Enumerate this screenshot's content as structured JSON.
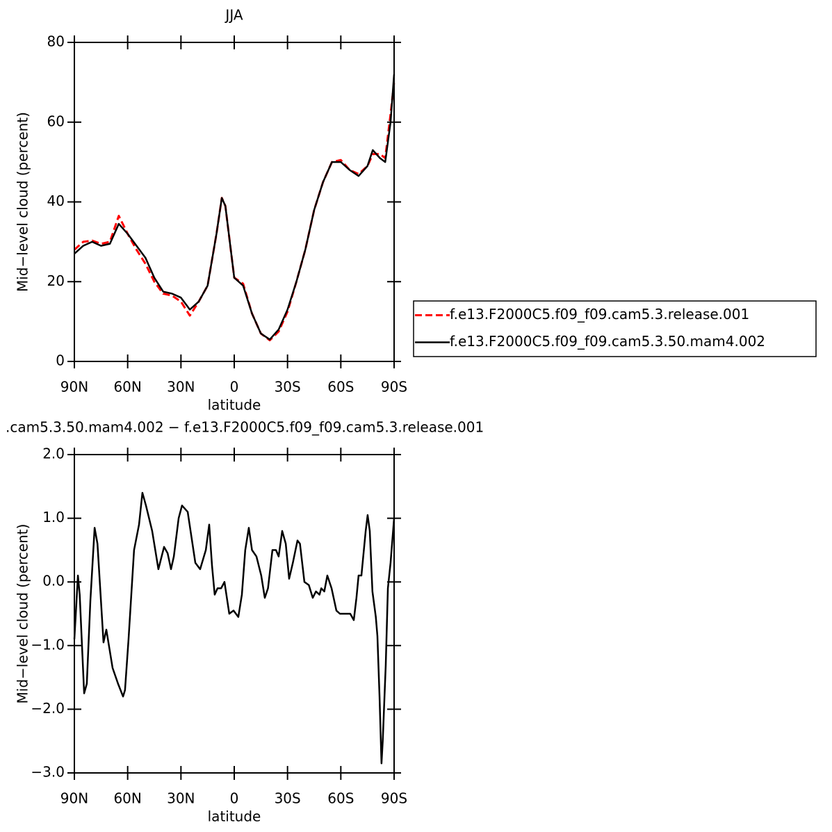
{
  "chart_data": [
    {
      "type": "line",
      "title": "JJA",
      "xlabel": "latitude",
      "ylabel": "Mid−level cloud (percent)",
      "x": [
        90,
        85,
        80,
        75,
        70,
        65,
        60,
        55,
        50,
        45,
        40,
        35,
        30,
        25,
        20,
        15,
        10,
        7,
        5,
        0,
        -5,
        -10,
        -15,
        -20,
        -25,
        -30,
        -35,
        -40,
        -45,
        -50,
        -55,
        -60,
        -65,
        -70,
        -75,
        -78,
        -82,
        -85,
        -88,
        -90
      ],
      "series": [
        {
          "name": "f.e13.F2000C5.f09_f09.cam5.3.release.001",
          "color": "#ff0000",
          "dash": true,
          "values": [
            28,
            30,
            30.3,
            29.5,
            30,
            36.5,
            32,
            28,
            24.5,
            20,
            17,
            16.5,
            15,
            11.5,
            15,
            19,
            32,
            41,
            39,
            21,
            19.5,
            12,
            7,
            5.3,
            7.5,
            12.5,
            20,
            28,
            38,
            45,
            50,
            50.5,
            48,
            47,
            49,
            52,
            52,
            51,
            62,
            70
          ]
        },
        {
          "name": "f.e13.F2000C5.f09_f09.cam5.3.50.mam4.002",
          "color": "#000000",
          "dash": false,
          "values": [
            27,
            29,
            30,
            29,
            29.5,
            34.5,
            32,
            29,
            26,
            21,
            17.5,
            17,
            16,
            13,
            15,
            19,
            32,
            41,
            39,
            21,
            19,
            12,
            7,
            5.5,
            8,
            13,
            20,
            28,
            38,
            45,
            50,
            50,
            48,
            46.5,
            49,
            53,
            51,
            50,
            60,
            72
          ]
        }
      ],
      "xlim": [
        90,
        -90
      ],
      "xticks": [
        {
          "value": 90,
          "label": "90N"
        },
        {
          "value": 60,
          "label": "60N"
        },
        {
          "value": 30,
          "label": "30N"
        },
        0,
        {
          "value": -30,
          "label": "30S"
        },
        {
          "value": -60,
          "label": "60S"
        },
        {
          "value": -90,
          "label": "90S"
        }
      ],
      "ylim": [
        0,
        80
      ],
      "yticks": [
        0,
        20,
        40,
        60,
        80
      ],
      "legend": "right"
    },
    {
      "type": "line",
      "title": ".cam5.3.50.mam4.002 − f.e13.F2000C5.f09_f09.cam5.3.release.001",
      "xlabel": "latitude",
      "ylabel": "Mid−level cloud (percent)",
      "x": [
        90,
        88,
        87,
        84.5,
        83,
        81,
        78.6,
        77,
        73.6,
        72,
        68.5,
        65.4,
        62.6,
        61.5,
        59.5,
        56.4,
        53.6,
        51.7,
        49.7,
        46.2,
        42.7,
        39.5,
        37.5,
        35.6,
        34,
        31.3,
        29.4,
        26.2,
        21.9,
        19.2,
        16,
        14.1,
        12.5,
        11,
        9.4,
        7.4,
        5.5,
        2.8,
        0.4,
        -2.3,
        -4.3,
        -6.2,
        -8.2,
        -10,
        -12.5,
        -15.2,
        -17.2,
        -19,
        -21.5,
        -23.5,
        -25,
        -27,
        -29,
        -30.9,
        -33,
        -35.6,
        -37,
        -39.5,
        -42,
        -44.2,
        -46,
        -48,
        -49,
        -50.7,
        -52.4,
        -54.8,
        -57.5,
        -59.5,
        -61.5,
        -63,
        -65.3,
        -67.3,
        -68.8,
        -70,
        -71.6,
        -74,
        -75.1,
        -76.3,
        -77.8,
        -79.7,
        -80.6,
        -81.8,
        -82.9,
        -83.6,
        -85.3,
        -86.5,
        -88,
        -90
      ],
      "series": [
        {
          "name": null,
          "color": "#000000",
          "dash": false,
          "values": [
            -0.9,
            0.1,
            -0.2,
            -1.75,
            -1.6,
            -0.3,
            0.85,
            0.6,
            -0.95,
            -0.75,
            -1.35,
            -1.6,
            -1.8,
            -1.7,
            -0.9,
            0.5,
            0.9,
            1.4,
            1.2,
            0.8,
            0.2,
            0.55,
            0.45,
            0.2,
            0.4,
            1.0,
            1.2,
            1.1,
            0.3,
            0.2,
            0.5,
            0.9,
            0.25,
            -0.2,
            -0.1,
            -0.1,
            0,
            -0.5,
            -0.45,
            -0.55,
            -0.2,
            0.5,
            0.85,
            0.5,
            0.4,
            0.1,
            -0.25,
            -0.1,
            0.5,
            0.5,
            0.4,
            0.8,
            0.6,
            0.05,
            0.3,
            0.65,
            0.6,
            0,
            -0.05,
            -0.25,
            -0.15,
            -0.2,
            -0.1,
            -0.15,
            0.1,
            -0.1,
            -0.45,
            -0.5,
            -0.5,
            -0.5,
            -0.5,
            -0.6,
            -0.25,
            0.1,
            0.1,
            0.8,
            1.05,
            0.8,
            -0.15,
            -0.55,
            -0.85,
            -1.8,
            -2.85,
            -2.5,
            -1.3,
            -0.1,
            0.3,
            1.0
          ]
        }
      ],
      "xlim": [
        90,
        -90
      ],
      "xticks": [
        {
          "value": 90,
          "label": "90N"
        },
        {
          "value": 60,
          "label": "60N"
        },
        {
          "value": 30,
          "label": "30N"
        },
        0,
        {
          "value": -30,
          "label": "30S"
        },
        {
          "value": -60,
          "label": "60S"
        },
        {
          "value": -90,
          "label": "90S"
        }
      ],
      "ylim": [
        -3,
        2
      ],
      "yticks": [
        {
          "value": -3,
          "label": "−3.0"
        },
        {
          "value": -2,
          "label": "−2.0"
        },
        {
          "value": -1,
          "label": "−1.0"
        },
        {
          "value": 0,
          "label": "0.0"
        },
        {
          "value": 1,
          "label": "1.0"
        },
        {
          "value": 2,
          "label": "2.0"
        }
      ]
    }
  ]
}
